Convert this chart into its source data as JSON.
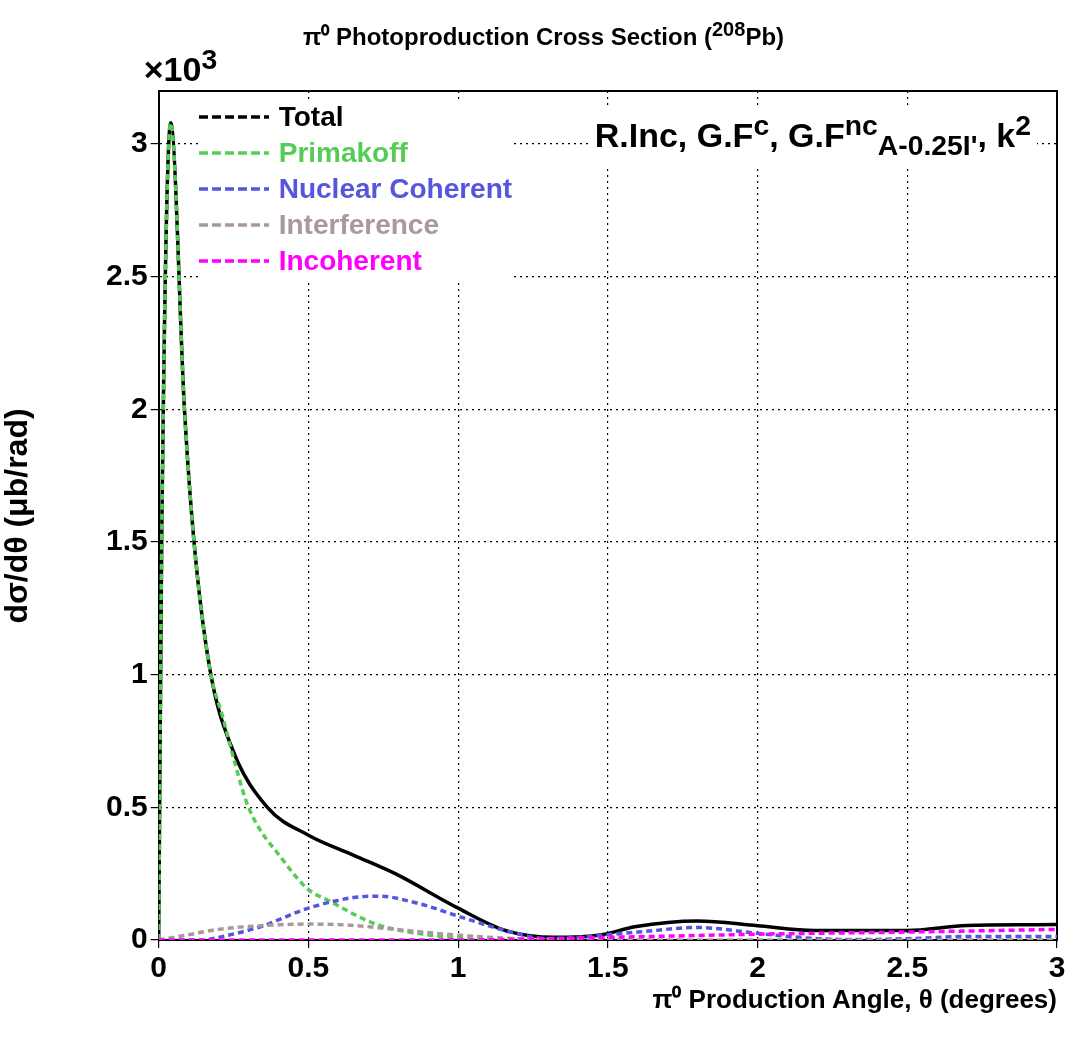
{
  "chart_data": {
    "type": "line",
    "title": "π⁰ Photoproduction Cross Section ($^{208}$Pb)",
    "xlabel": "π⁰ Production Angle, θ (degrees)",
    "ylabel": "dσ/dθ (μb/rad)",
    "annotations": [
      "×10$^{3}$",
      "R.Inc, G.F$^{c}$, G.F$^{nc}$$_{A-0.25I'}$, k$^{2}$"
    ],
    "xlim": [
      0,
      3
    ],
    "xticks": [
      0,
      0.5,
      1,
      1.5,
      2,
      2.5,
      3
    ],
    "ylim": [
      0,
      3.2
    ],
    "yticks": [
      0,
      0.5,
      1,
      1.5,
      2,
      2.5,
      3
    ],
    "grid": true,
    "legend": "top left",
    "marker": "none",
    "series": [
      {
        "name": "Total",
        "color": "#000000",
        "line_style": "solid",
        "x": [
          0,
          0.01,
          0.04,
          0.086,
          0.118,
          0.171,
          0.246,
          0.363,
          0.5,
          0.65,
          0.79,
          1.0,
          1.16,
          1.32,
          1.48,
          1.59,
          1.8,
          2.0,
          2.19,
          2.5,
          2.7,
          3.0
        ],
        "values": [
          0,
          1.5,
          3.08,
          2.0,
          1.5,
          1.02,
          0.72,
          0.5,
          0.395,
          0.32,
          0.25,
          0.12,
          0.035,
          0.01,
          0.02,
          0.05,
          0.072,
          0.054,
          0.036,
          0.036,
          0.055,
          0.058
        ]
      },
      {
        "name": "Primakoff",
        "color": "#55cc55",
        "line_style": "dashed",
        "x": [
          0,
          0.01,
          0.04,
          0.086,
          0.118,
          0.171,
          0.214,
          0.256,
          0.3,
          0.416,
          0.5,
          0.565,
          0.725,
          0.895,
          1.0,
          1.3
        ],
        "values": [
          0,
          1.5,
          3.08,
          2.0,
          1.5,
          1.02,
          0.84,
          0.66,
          0.5,
          0.3,
          0.19,
          0.15,
          0.06,
          0.02,
          0.008,
          0
        ]
      },
      {
        "name": "Nuclear Coherent",
        "color": "#5555dd",
        "line_style": "dashed",
        "x": [
          0,
          0.15,
          0.2,
          0.34,
          0.5,
          0.65,
          0.735,
          0.87,
          1.0,
          1.16,
          1.3,
          1.6,
          1.8,
          2.0,
          2.2,
          2.35,
          2.5,
          2.7,
          3.0
        ],
        "values": [
          0,
          0,
          0.01,
          0.05,
          0.12,
          0.16,
          0.165,
          0.137,
          0.09,
          0.035,
          0.005,
          0.03,
          0.047,
          0.025,
          0.005,
          0.002,
          0.005,
          0.013,
          0.013
        ]
      },
      {
        "name": "Interference",
        "color": "#aa9999",
        "line_style": "dashed",
        "x": [
          0,
          0.1,
          0.2,
          0.36,
          0.5,
          0.65,
          0.79,
          1.0,
          1.2,
          1.5,
          2.0,
          2.5,
          3.0
        ],
        "values": [
          0,
          0.02,
          0.04,
          0.055,
          0.06,
          0.055,
          0.04,
          0.018,
          0.005,
          0,
          0,
          0,
          0
        ]
      },
      {
        "name": "Incoherent",
        "color": "#ff00ff",
        "line_style": "dashed",
        "x": [
          0,
          0.5,
          1.0,
          1.3,
          1.5,
          1.8,
          2.0,
          2.5,
          3.0
        ],
        "values": [
          0,
          0,
          0,
          0.005,
          0.01,
          0.017,
          0.022,
          0.03,
          0.04
        ]
      }
    ]
  }
}
